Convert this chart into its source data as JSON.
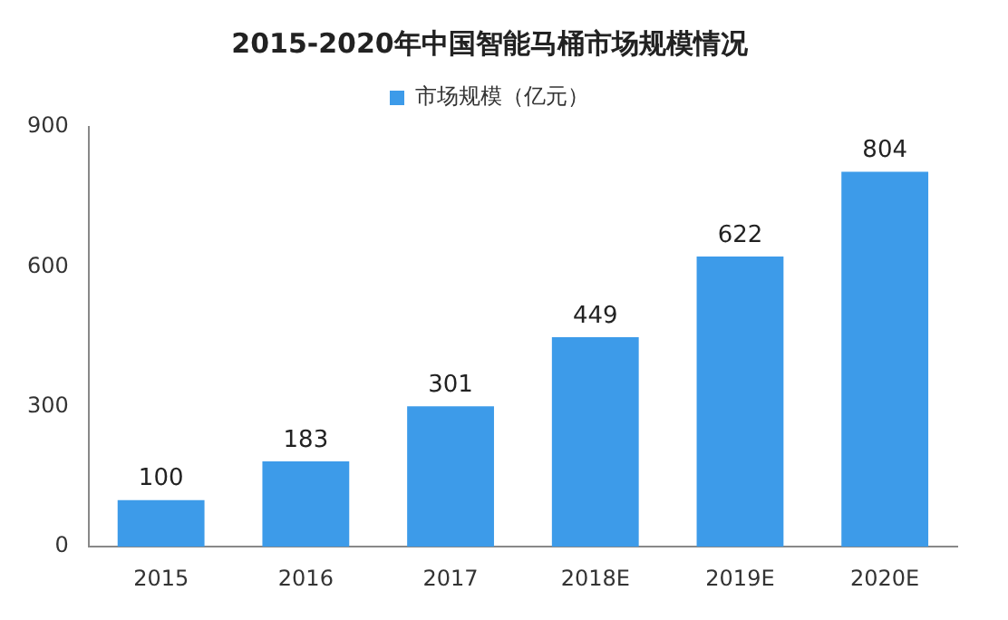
{
  "chart_data": {
    "type": "bar",
    "title": "2015-2020年中国智能马桶市场规模情况",
    "categories": [
      "2015",
      "2016",
      "2017",
      "2018E",
      "2019E",
      "2020E"
    ],
    "series": [
      {
        "name": "市场规模（亿元）",
        "color": "#3d9be9",
        "values": [
          100,
          183,
          301,
          449,
          622,
          804
        ]
      }
    ],
    "ylim": [
      0,
      900
    ],
    "yticks": [
      0,
      300,
      600,
      900
    ],
    "grid": false,
    "legend": "top",
    "data_labels": true
  }
}
